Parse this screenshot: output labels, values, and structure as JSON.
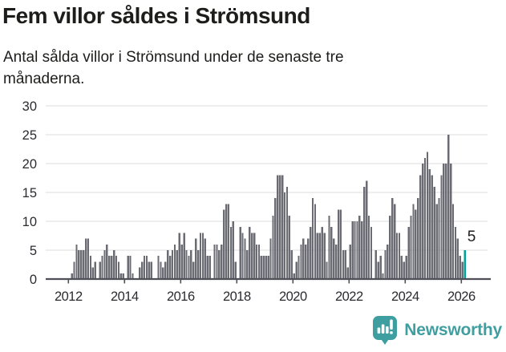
{
  "title": "Fem villor såldes i Strömsund",
  "subtitle": "Antal sålda villor i Strömsund under de senaste tre månaderna.",
  "footer": {
    "brand": "Newsworthy",
    "logo_icon": "newsworthy-speech-bubble-bar-chart-icon"
  },
  "colors": {
    "bar": "#6b6b74",
    "highlight": "#00a09b",
    "axis": "#4f4f57",
    "gridline": "#e4e4e4",
    "tick_text": "#2b2b30",
    "brand": "#3f9fa0",
    "text": "#1d1d1b"
  },
  "chart_data": {
    "type": "bar",
    "title": "Fem villor såldes i Strömsund",
    "subtitle": "Antal sålda villor i Strömsund under de senaste tre månaderna.",
    "frequency": "monthly",
    "start_year": 2012,
    "start_month": 1,
    "values": [
      0,
      1,
      3,
      6,
      5,
      5,
      5,
      7,
      7,
      4,
      2,
      3,
      0,
      3,
      4,
      5,
      6,
      4,
      4,
      5,
      4,
      3,
      1,
      1,
      0,
      4,
      4,
      1,
      0,
      0,
      2,
      3,
      4,
      4,
      3,
      3,
      0,
      0,
      4,
      3,
      2,
      3,
      5,
      4,
      5,
      6,
      5,
      8,
      6,
      8,
      5,
      4,
      5,
      3,
      7,
      5,
      8,
      8,
      7,
      4,
      4,
      0,
      6,
      6,
      5,
      6,
      12,
      13,
      13,
      9,
      10,
      3,
      0,
      9,
      8,
      7,
      5,
      9,
      8,
      8,
      6,
      6,
      4,
      4,
      4,
      4,
      7,
      11,
      14,
      18,
      18,
      18,
      15,
      16,
      11,
      5,
      1,
      3,
      4,
      6,
      7,
      6,
      7,
      9,
      14,
      13,
      8,
      8,
      9,
      8,
      3,
      11,
      9,
      7,
      6,
      12,
      12,
      5,
      5,
      2,
      6,
      10,
      10,
      10,
      11,
      10,
      16,
      17,
      11,
      9,
      0,
      5,
      3,
      4,
      1,
      5,
      6,
      11,
      14,
      13,
      8,
      8,
      4,
      3,
      4,
      9,
      11,
      13,
      12,
      14,
      18,
      20,
      21,
      22,
      19,
      18,
      16,
      13,
      14,
      18,
      20,
      20,
      25,
      20,
      13,
      9,
      7,
      4,
      3,
      5
    ],
    "highlight_last": true,
    "highlight_value": 5,
    "annotation_label": "5",
    "x_tick_labels": [
      "2012",
      "2014",
      "2016",
      "2018",
      "2020",
      "2022",
      "2024",
      "2026"
    ],
    "y_ticks": [
      0,
      5,
      10,
      15,
      20,
      25,
      30
    ],
    "ylim": [
      0,
      30
    ],
    "grid": true,
    "legend": "none"
  }
}
